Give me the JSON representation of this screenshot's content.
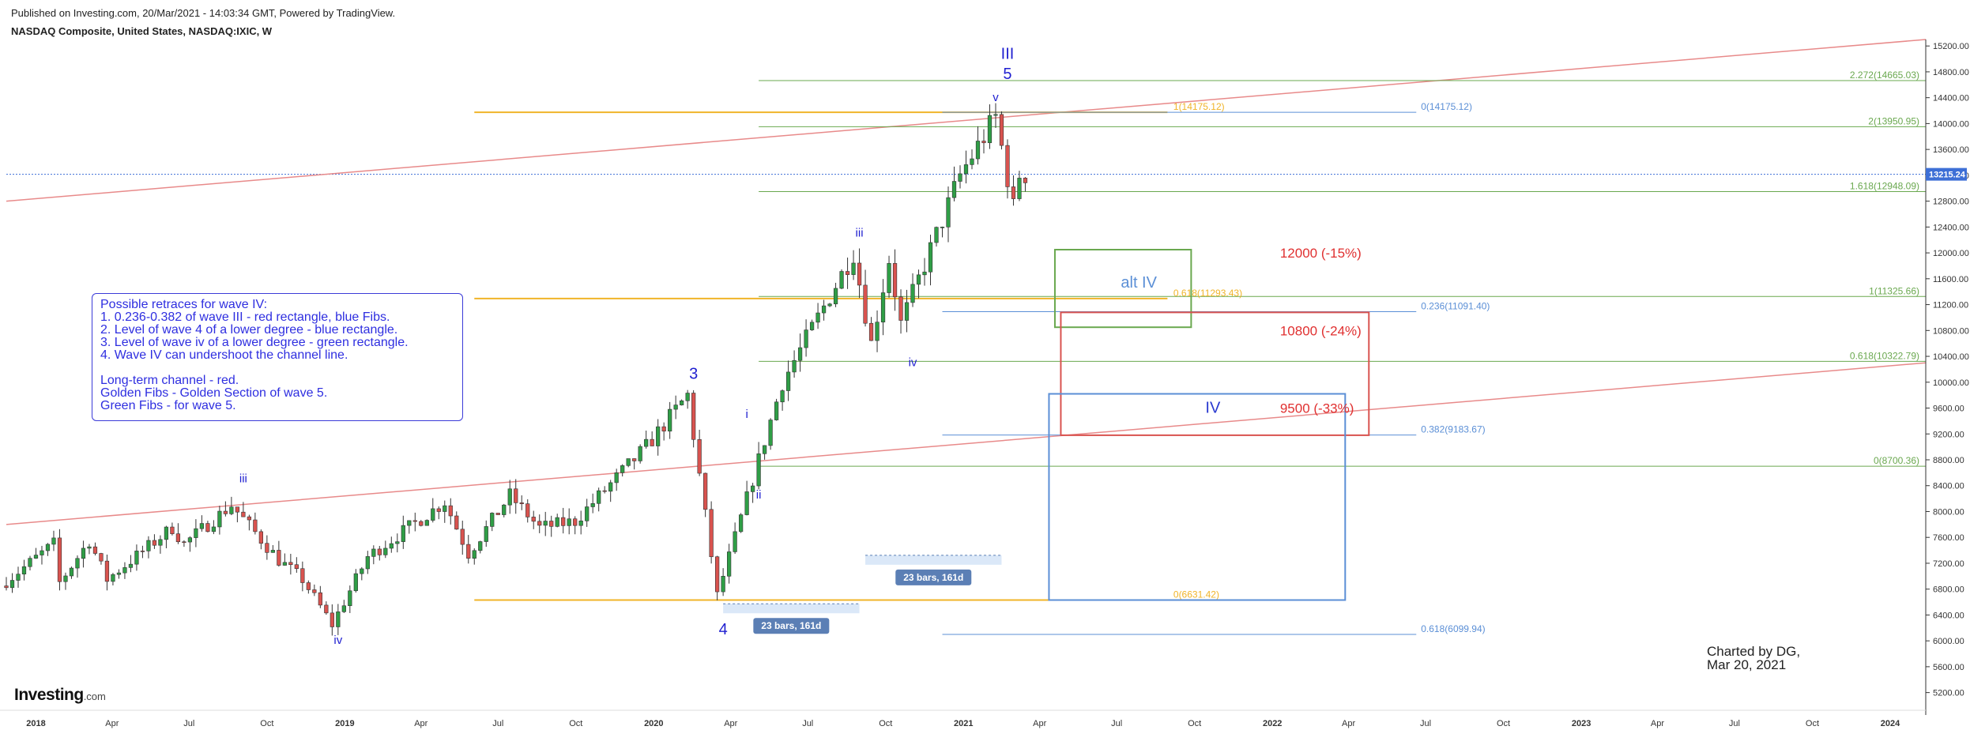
{
  "header": {
    "published": "Published on Investing.com, 20/Mar/2021 - 14:03:34 GMT, Powered by TradingView.",
    "title": "NASDAQ Composite, United States, NASDAQ:IXIC, W"
  },
  "branding": {
    "logo": "Investing",
    "logo_suffix": ".com"
  },
  "charted_by": [
    "Charted by DG,",
    "Mar 20, 2021"
  ],
  "note_box": {
    "lines": [
      "Possible retraces for wave IV:",
      "1. 0.236-0.382 of wave III - red rectangle, blue Fibs.",
      "2. Level of wave 4 of a lower degree - blue rectangle.",
      "3. Level of wave iv of a lower degree - green rectangle.",
      "4. Wave IV can undershoot the channel line."
    ],
    "lines2": [
      "Long-term channel - red.",
      "Golden Fibs - Golden Section of wave 5.",
      "Green Fibs - for wave 5."
    ]
  },
  "colors": {
    "up": "#2f9e46",
    "down": "#d9534f",
    "channel": "#e88a8a",
    "gold": "#f0b429",
    "green_fib": "#6aa84f",
    "blue_fib": "#5b8fd6",
    "wave_label": "#1f1fd0",
    "price_tag": "#3d6fd6",
    "bars_box": "#5b7fb5"
  },
  "chart_data": {
    "type": "candlestick",
    "symbol": "NASDAQ:IXIC",
    "timeframe": "W",
    "current_price": "13215.24",
    "ylim": [
      5000,
      15300
    ],
    "xlim": [
      "2017-11-27",
      "2024-02-12"
    ],
    "y_ticks": [
      "15200.00",
      "14800.00",
      "14400.00",
      "14000.00",
      "13600.00",
      "13200.00",
      "12800.00",
      "12400.00",
      "12000.00",
      "11600.00",
      "11200.00",
      "10800.00",
      "10400.00",
      "10000.00",
      "9600.00",
      "9200.00",
      "8800.00",
      "8400.00",
      "8000.00",
      "7600.00",
      "7200.00",
      "6800.00",
      "6400.00",
      "6000.00",
      "5600.00",
      "5200.00"
    ],
    "x_ticks": [
      {
        "label": "2018",
        "date": "2018-01-01"
      },
      {
        "label": "Apr",
        "date": "2018-04-01"
      },
      {
        "label": "Jul",
        "date": "2018-07-01"
      },
      {
        "label": "Oct",
        "date": "2018-10-01"
      },
      {
        "label": "2019",
        "date": "2019-01-01"
      },
      {
        "label": "Apr",
        "date": "2019-04-01"
      },
      {
        "label": "Jul",
        "date": "2019-07-01"
      },
      {
        "label": "Oct",
        "date": "2019-10-01"
      },
      {
        "label": "2020",
        "date": "2020-01-01"
      },
      {
        "label": "Apr",
        "date": "2020-04-01"
      },
      {
        "label": "Jul",
        "date": "2020-07-01"
      },
      {
        "label": "Oct",
        "date": "2020-10-01"
      },
      {
        "label": "2021",
        "date": "2021-01-01"
      },
      {
        "label": "Apr",
        "date": "2021-04-01"
      },
      {
        "label": "Jul",
        "date": "2021-07-01"
      },
      {
        "label": "Oct",
        "date": "2021-10-01"
      },
      {
        "label": "2022",
        "date": "2022-01-01"
      },
      {
        "label": "Apr",
        "date": "2022-04-01"
      },
      {
        "label": "Jul",
        "date": "2022-07-01"
      },
      {
        "label": "Oct",
        "date": "2022-10-01"
      },
      {
        "label": "2023",
        "date": "2023-01-01"
      },
      {
        "label": "Apr",
        "date": "2023-04-01"
      },
      {
        "label": "Jul",
        "date": "2023-07-01"
      },
      {
        "label": "Oct",
        "date": "2023-10-01"
      },
      {
        "label": "2024",
        "date": "2024-01-01"
      }
    ],
    "path": [
      {
        "date": "2017-11-27",
        "value": 6850
      },
      {
        "date": "2018-01-29",
        "value": 7500
      },
      {
        "date": "2018-02-05",
        "value": 6900
      },
      {
        "date": "2018-03-12",
        "value": 7550
      },
      {
        "date": "2018-04-02",
        "value": 6950
      },
      {
        "date": "2018-06-18",
        "value": 7750
      },
      {
        "date": "2018-07-02",
        "value": 7500
      },
      {
        "date": "2018-08-27",
        "value": 8100
      },
      {
        "date": "2018-10-22",
        "value": 7250
      },
      {
        "date": "2018-11-19",
        "value": 6950
      },
      {
        "date": "2018-12-24",
        "value": 6250
      },
      {
        "date": "2019-02-04",
        "value": 7300
      },
      {
        "date": "2019-05-06",
        "value": 8150
      },
      {
        "date": "2019-06-03",
        "value": 7350
      },
      {
        "date": "2019-07-22",
        "value": 8250
      },
      {
        "date": "2019-08-26",
        "value": 7750
      },
      {
        "date": "2019-10-07",
        "value": 7850
      },
      {
        "date": "2019-12-30",
        "value": 9000
      },
      {
        "date": "2020-02-17",
        "value": 9800
      },
      {
        "date": "2020-03-23",
        "value": 6700
      },
      {
        "date": "2020-06-08",
        "value": 10000
      },
      {
        "date": "2020-08-31",
        "value": 12000
      },
      {
        "date": "2020-09-21",
        "value": 10600
      },
      {
        "date": "2020-10-12",
        "value": 11900
      },
      {
        "date": "2020-10-26",
        "value": 10900
      },
      {
        "date": "2021-01-04",
        "value": 13200
      },
      {
        "date": "2021-02-15",
        "value": 14100
      },
      {
        "date": "2021-03-08",
        "value": 12700
      },
      {
        "date": "2021-03-15",
        "value": 13215
      }
    ],
    "channel_lines": [
      {
        "name": "upper",
        "from": {
          "date": "2017-11-27",
          "value": 12800
        },
        "to": {
          "date": "2024-02-12",
          "value": 15300
        }
      },
      {
        "name": "lower",
        "from": {
          "date": "2017-11-27",
          "value": 7800
        },
        "to": {
          "date": "2024-02-12",
          "value": 10300
        }
      }
    ],
    "horizontal_levels": [
      {
        "group": "green",
        "label": "2.272(14665.03)",
        "value": 14665.03
      },
      {
        "group": "green",
        "label": "2(13950.95)",
        "value": 13950.95
      },
      {
        "group": "green",
        "label": "1.618(12948.09)",
        "value": 12948.09
      },
      {
        "group": "green",
        "label": "1(11325.66)",
        "value": 11325.66
      },
      {
        "group": "green",
        "label": "0.618(10322.79)",
        "value": 10322.79
      },
      {
        "group": "green",
        "label": "0(8700.36)",
        "value": 8700.36
      },
      {
        "group": "gold",
        "label": "1(14175.12)",
        "value": 14175.12
      },
      {
        "group": "gold",
        "label": "0.618(11293.43)",
        "value": 11293.43
      },
      {
        "group": "gold",
        "label": "0(6631.42)",
        "value": 6631.42
      },
      {
        "group": "blue",
        "label": "0(14175.12)",
        "value": 14175.12
      },
      {
        "group": "blue",
        "label": "0.236(11091.40)",
        "value": 11091.4
      },
      {
        "group": "blue",
        "label": "0.382(9183.67)",
        "value": 9183.67
      },
      {
        "group": "blue",
        "label": "0.618(6099.94)",
        "value": 6099.94
      }
    ],
    "rectangles": [
      {
        "name": "alt-iv",
        "color": "green",
        "label": "alt IV",
        "from": "2021-04-19",
        "to": "2021-09-27",
        "top": 12050,
        "bottom": 10850
      },
      {
        "name": "red-retrace",
        "color": "red",
        "label": "",
        "from": "2021-04-26",
        "to": "2022-04-25",
        "top": 11080,
        "bottom": 9180
      },
      {
        "name": "iv-blue",
        "color": "blue",
        "label": "IV",
        "from": "2021-04-12",
        "to": "2022-03-28",
        "top": 9820,
        "bottom": 6631
      }
    ],
    "targets": [
      {
        "label": "12000 (-15%)",
        "value": 12000
      },
      {
        "label": "10800 (-24%)",
        "value": 10800
      },
      {
        "label": "9500 (-33%)",
        "value": 9500
      }
    ],
    "wave_labels": [
      {
        "label": "iii",
        "date": "2018-09-03",
        "value": 8450
      },
      {
        "label": "iv",
        "date": "2018-12-24",
        "value": 5950
      },
      {
        "label": "3",
        "date": "2020-02-17",
        "value": 10050
      },
      {
        "label": "4",
        "date": "2020-03-23",
        "value": 6100
      },
      {
        "label": "i",
        "date": "2020-04-20",
        "value": 9450
      },
      {
        "label": "ii",
        "date": "2020-05-04",
        "value": 8200
      },
      {
        "label": "iii",
        "date": "2020-08-31",
        "value": 12250
      },
      {
        "label": "iv",
        "date": "2020-11-02",
        "value": 10250
      },
      {
        "label": "v",
        "date": "2021-02-08",
        "value": 14350
      },
      {
        "label": "III",
        "date": "2021-02-22",
        "value": 15000
      },
      {
        "label": "5",
        "date": "2021-02-22",
        "value": 14690
      }
    ],
    "bar_counts": [
      {
        "label": "23 bars, 161d",
        "from": "2020-03-23",
        "to": "2020-08-31",
        "value": 6500
      },
      {
        "label": "23 bars, 161d",
        "from": "2020-09-07",
        "to": "2021-02-15",
        "value": 7250
      }
    ]
  }
}
